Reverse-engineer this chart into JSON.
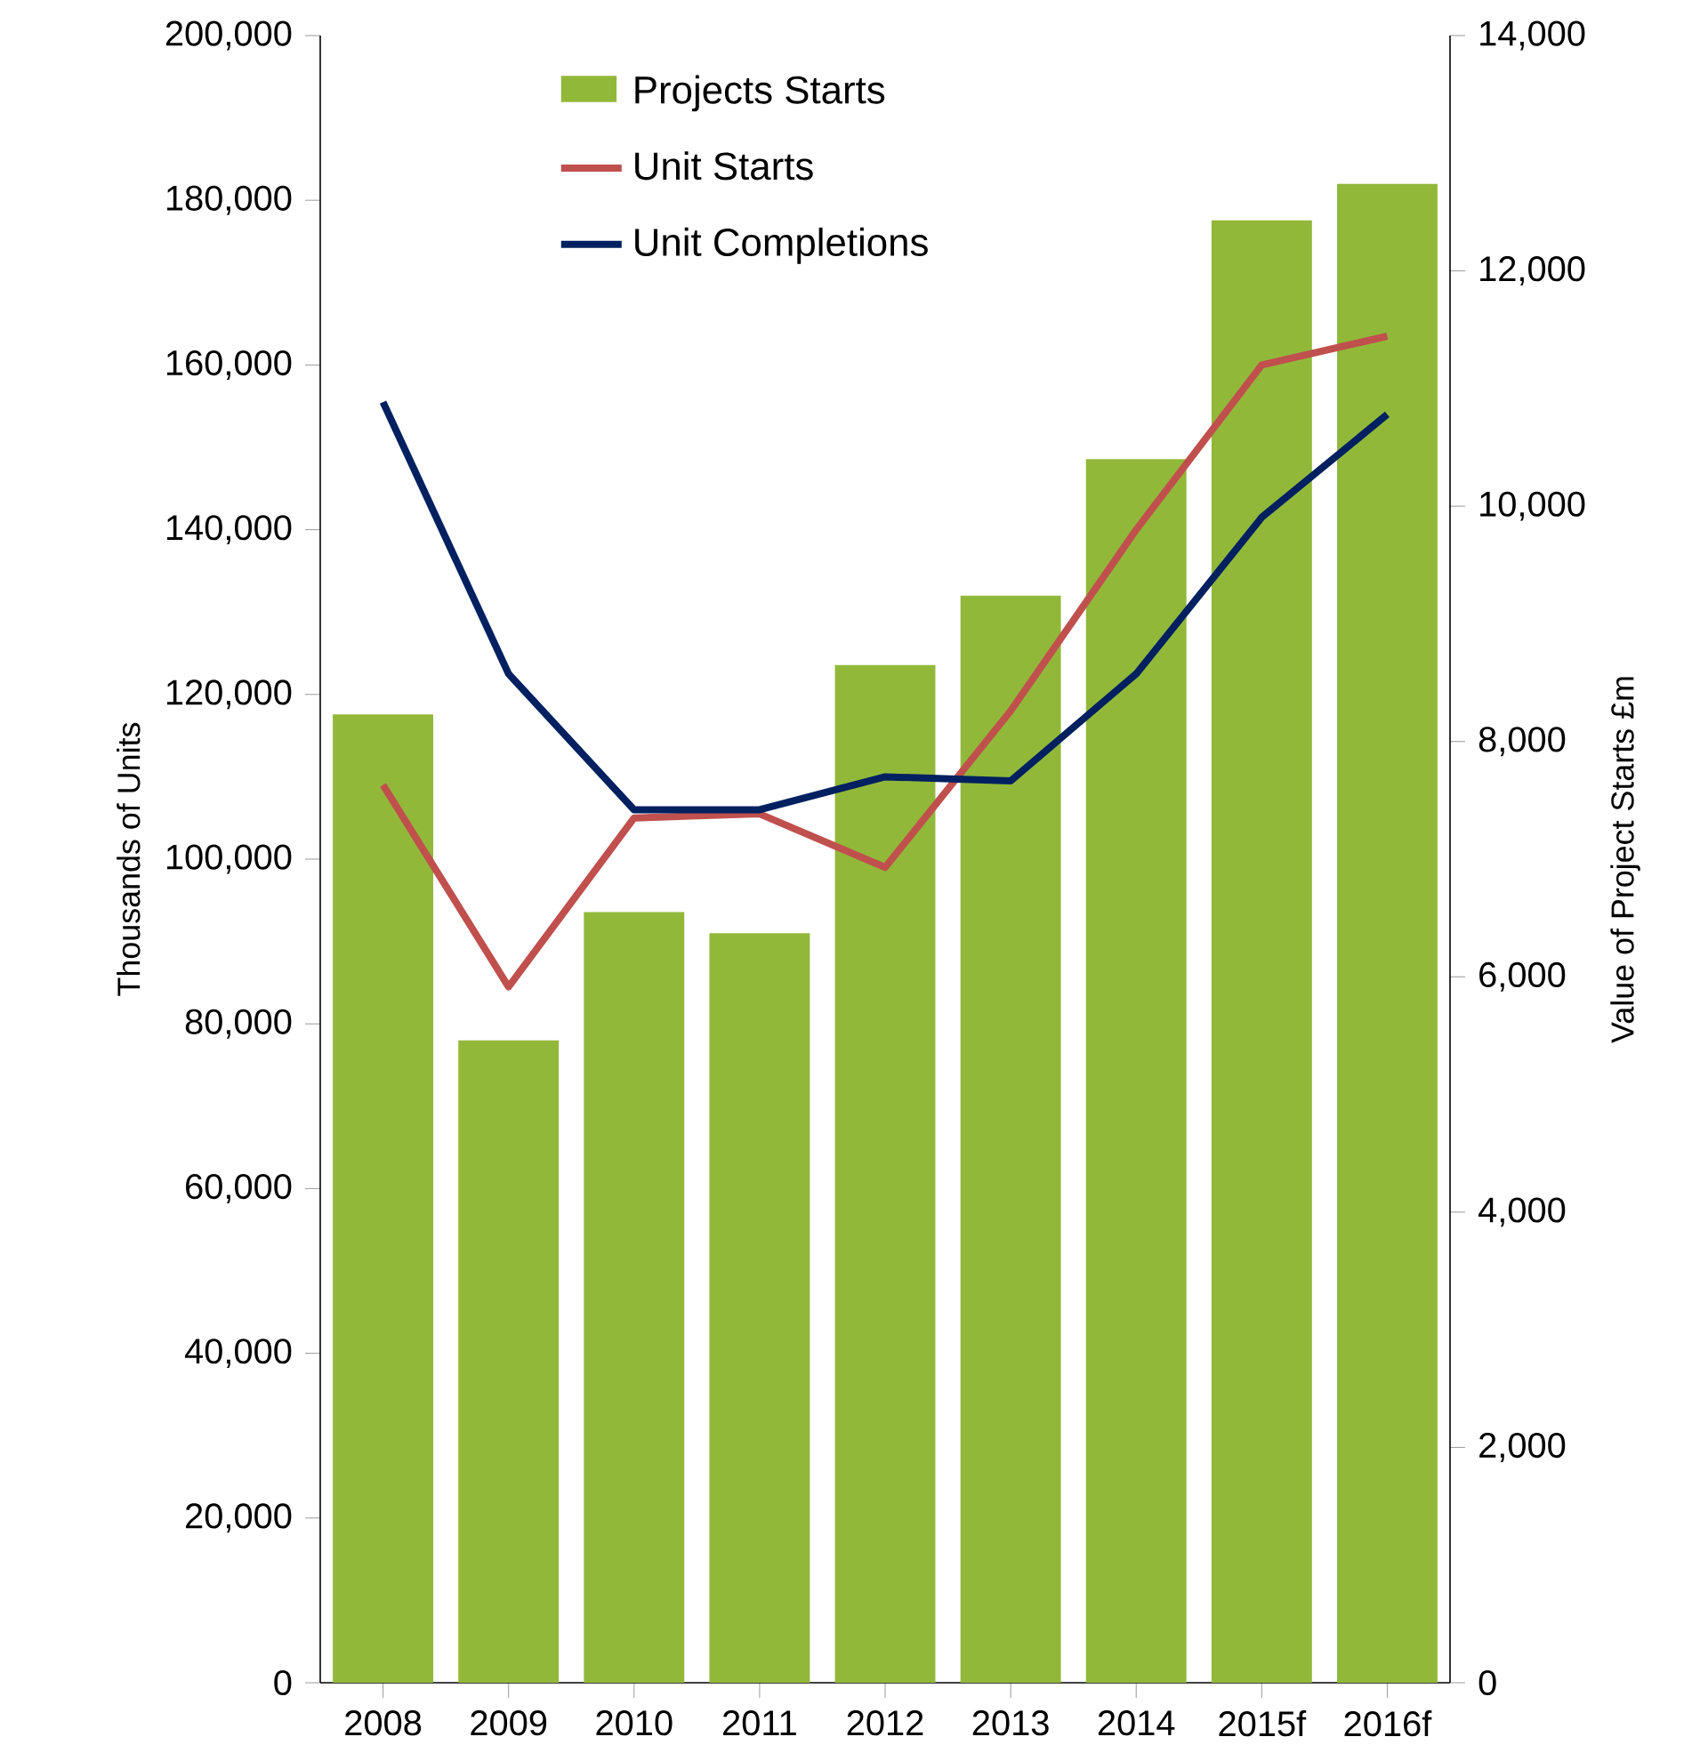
{
  "chart_data": {
    "type": "bar",
    "categories": [
      "2008",
      "2009",
      "2010",
      "2011",
      "2012",
      "2013",
      "2014",
      "2015f",
      "2016f"
    ],
    "series": [
      {
        "name": "Projects Starts",
        "axis": "y2",
        "color": "#92b83a",
        "values": [
          8230,
          5460,
          6550,
          6370,
          8650,
          9240,
          10400,
          12430,
          12740
        ]
      },
      {
        "name": "Unit Starts",
        "type": "line",
        "color": "#c0504d",
        "values": [
          109000,
          84500,
          105000,
          105500,
          99000,
          118000,
          140000,
          160000,
          163500
        ]
      },
      {
        "name": "Unit Completions",
        "type": "line",
        "color": "#002060",
        "values": [
          155500,
          122500,
          106000,
          106000,
          110000,
          109500,
          122500,
          141500,
          154000
        ]
      }
    ],
    "ylabel": "Thousands of Units",
    "y2label": "Value of Project Starts £m",
    "ylim": [
      0,
      200000
    ],
    "yticks": [
      {
        "value": 0,
        "label": "0"
      },
      {
        "value": 20000,
        "label": "20,000"
      },
      {
        "value": 40000,
        "label": "40,000"
      },
      {
        "value": 60000,
        "label": "60,000"
      },
      {
        "value": 80000,
        "label": "80,000"
      },
      {
        "value": 100000,
        "label": "100,000"
      },
      {
        "value": 120000,
        "label": "120,000"
      },
      {
        "value": 140000,
        "label": "140,000"
      },
      {
        "value": 160000,
        "label": "160,000"
      },
      {
        "value": 180000,
        "label": "180,000"
      },
      {
        "value": 200000,
        "label": "200,000"
      }
    ],
    "y2lim": [
      0,
      14000
    ],
    "y2ticks": [
      {
        "value": 0,
        "label": "0"
      },
      {
        "value": 2000,
        "label": "2,000"
      },
      {
        "value": 4000,
        "label": "4,000"
      },
      {
        "value": 6000,
        "label": "6,000"
      },
      {
        "value": 8000,
        "label": "8,000"
      },
      {
        "value": 10000,
        "label": "10,000"
      },
      {
        "value": 12000,
        "label": "12,000"
      },
      {
        "value": 14000,
        "label": "14,000"
      }
    ],
    "legend": "top left",
    "grid": false,
    "marker": "none",
    "line_style": "solid"
  }
}
